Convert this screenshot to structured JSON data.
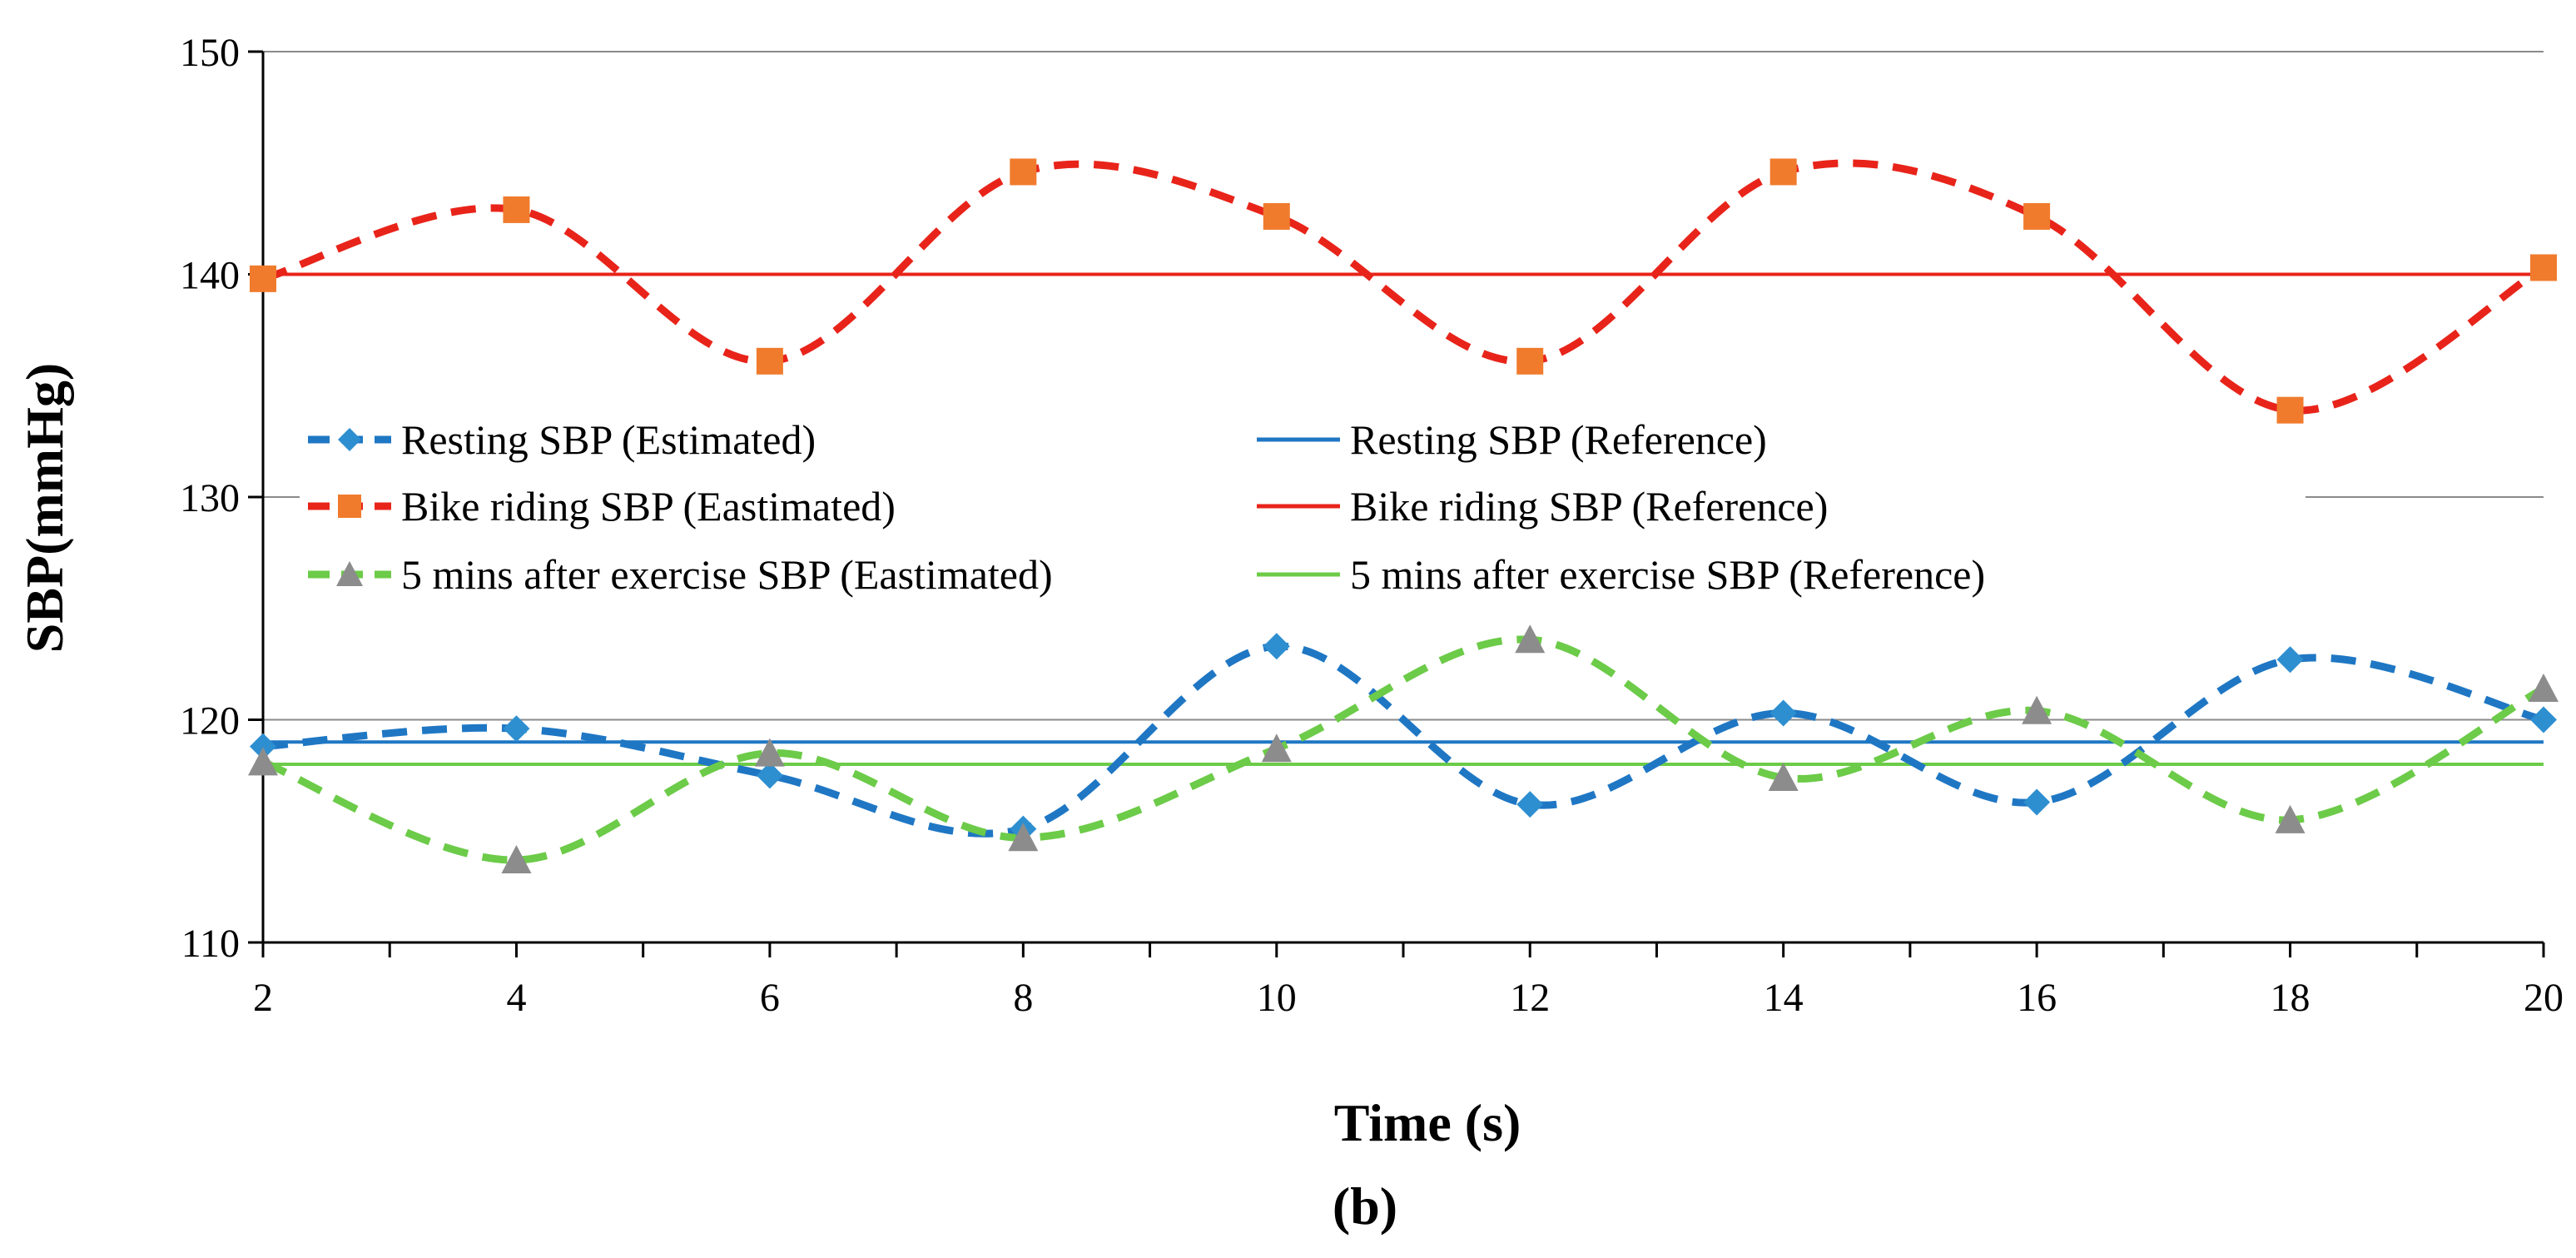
{
  "chart_data": {
    "type": "line",
    "xlabel": "Time (s)",
    "ylabel": "SBP(mmHg)",
    "panel_label": "(b)",
    "xlim": [
      2,
      20
    ],
    "ylim": [
      110,
      150
    ],
    "x_ticks": [
      "2",
      "4",
      "6",
      "8",
      "10",
      "12",
      "14",
      "16",
      "18",
      "20"
    ],
    "y_ticks": [
      "110",
      "120",
      "130",
      "140",
      "150"
    ],
    "grid": "horizontal",
    "legend_placement": "center-left, inside plot",
    "x": [
      2,
      4,
      6,
      8,
      10,
      12,
      14,
      16,
      18,
      20
    ],
    "series": [
      {
        "name": "Resting SBP (Estimated)",
        "kind": "estimated",
        "color": "#1F77C4",
        "marker": "diamond",
        "marker_color": "#2E8FD0",
        "values": [
          118.8,
          119.6,
          117.5,
          115.1,
          123.3,
          116.2,
          120.3,
          116.3,
          122.7,
          120.0
        ]
      },
      {
        "name": "Bike riding SBP (Eastimated)",
        "kind": "estimated",
        "color": "#E8241A",
        "marker": "square",
        "marker_color": "#F07B2D",
        "values": [
          139.8,
          142.9,
          136.1,
          144.6,
          142.6,
          136.1,
          144.6,
          142.6,
          133.9,
          140.3
        ]
      },
      {
        "name": "5 mins after exercise SBP (Eastimated)",
        "kind": "estimated",
        "color": "#6CCB48",
        "marker": "triangle",
        "marker_color": "#8C8C8C",
        "values": [
          118.1,
          113.7,
          118.5,
          114.7,
          118.7,
          123.6,
          117.4,
          120.4,
          115.5,
          121.4
        ]
      },
      {
        "name": "Resting SBP (Reference)",
        "kind": "reference",
        "color": "#1F77C4",
        "values": [
          119,
          119,
          119,
          119,
          119,
          119,
          119,
          119,
          119,
          119
        ]
      },
      {
        "name": "Bike riding SBP (Reference)",
        "kind": "reference",
        "color": "#E8241A",
        "values": [
          140,
          140,
          140,
          140,
          140,
          140,
          140,
          140,
          140,
          140
        ]
      },
      {
        "name": "5 mins after exercise SBP (Reference)",
        "kind": "reference",
        "color": "#6CCB48",
        "values": [
          118,
          118,
          118,
          118,
          118,
          118,
          118,
          118,
          118,
          118
        ]
      }
    ]
  }
}
